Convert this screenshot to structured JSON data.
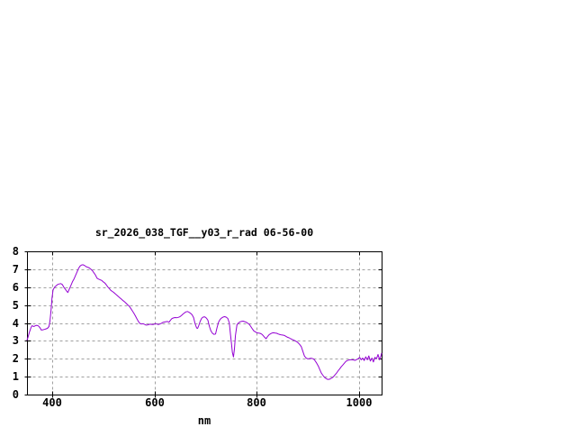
{
  "window": {
    "background": "#ffffff"
  },
  "chart_data": {
    "type": "line",
    "title": "sr_2026_038_TGF__y03_r_rad 06-56-00",
    "xlabel": "nm",
    "ylabel": "",
    "xlim": [
      350,
      1044
    ],
    "ylim": [
      0,
      8
    ],
    "x_ticks": [
      400,
      600,
      800,
      1000
    ],
    "y_ticks": [
      0,
      1,
      2,
      3,
      4,
      5,
      6,
      7,
      8
    ],
    "grid": true,
    "legend_position": "none",
    "axis_color": "#000000",
    "grid_color": "#a0a0a0",
    "series": [
      {
        "name": "spectral_radiance",
        "color": "#9400d3",
        "x": [
          350,
          352,
          355,
          358,
          360,
          363,
          366,
          369,
          372,
          375,
          378,
          381,
          384,
          387,
          390,
          393,
          395,
          397,
          399,
          401,
          404,
          407,
          410,
          413,
          416,
          419,
          422,
          425,
          428,
          430,
          433,
          436,
          439,
          442,
          445,
          448,
          451,
          454,
          457,
          460,
          463,
          466,
          469,
          472,
          475,
          478,
          481,
          484,
          487,
          490,
          493,
          496,
          499,
          502,
          505,
          508,
          511,
          514,
          517,
          520,
          523,
          526,
          529,
          532,
          535,
          538,
          541,
          544,
          547,
          550,
          553,
          556,
          559,
          562,
          565,
          568,
          571,
          574,
          577,
          580,
          583,
          586,
          589,
          592,
          595,
          598,
          601,
          604,
          607,
          610,
          613,
          616,
          619,
          622,
          625,
          628,
          631,
          634,
          637,
          640,
          643,
          646,
          649,
          652,
          655,
          658,
          661,
          664,
          667,
          670,
          673,
          676,
          679,
          682,
          684,
          686,
          689,
          692,
          695,
          698,
          701,
          704,
          707,
          710,
          713,
          716,
          719,
          722,
          725,
          728,
          731,
          734,
          737,
          740,
          743,
          746,
          748,
          750,
          752,
          754,
          756,
          758,
          761,
          764,
          767,
          770,
          773,
          776,
          779,
          782,
          785,
          788,
          791,
          794,
          797,
          800,
          803,
          806,
          809,
          812,
          815,
          818,
          821,
          824,
          827,
          830,
          833,
          836,
          839,
          842,
          845,
          848,
          851,
          854,
          857,
          860,
          863,
          866,
          869,
          872,
          875,
          878,
          881,
          884,
          887,
          890,
          893,
          896,
          899,
          902,
          905,
          908,
          911,
          914,
          917,
          920,
          923,
          926,
          929,
          932,
          935,
          938,
          941,
          944,
          947,
          950,
          953,
          956,
          959,
          962,
          965,
          968,
          971,
          974,
          977,
          980,
          983,
          986,
          989,
          992,
          995,
          998,
          1001,
          1004,
          1007,
          1010,
          1013,
          1016,
          1019,
          1022,
          1025,
          1028,
          1031,
          1034,
          1037,
          1040,
          1042,
          1044
        ],
        "y": [
          3.05,
          3.2,
          3.5,
          3.75,
          3.85,
          3.8,
          3.84,
          3.87,
          3.84,
          3.75,
          3.6,
          3.62,
          3.64,
          3.67,
          3.7,
          3.8,
          4.1,
          4.7,
          5.4,
          5.85,
          6.0,
          6.08,
          6.15,
          6.18,
          6.2,
          6.15,
          6.0,
          5.88,
          5.76,
          5.7,
          5.9,
          6.1,
          6.3,
          6.45,
          6.65,
          6.85,
          7.05,
          7.18,
          7.24,
          7.25,
          7.2,
          7.14,
          7.11,
          7.07,
          7.0,
          6.92,
          6.8,
          6.67,
          6.5,
          6.45,
          6.41,
          6.38,
          6.3,
          6.24,
          6.14,
          6.02,
          5.92,
          5.82,
          5.76,
          5.7,
          5.62,
          5.55,
          5.47,
          5.4,
          5.33,
          5.25,
          5.18,
          5.1,
          5.01,
          4.94,
          4.82,
          4.68,
          4.55,
          4.4,
          4.23,
          4.08,
          3.97,
          3.94,
          3.96,
          3.92,
          3.88,
          3.89,
          3.92,
          3.93,
          3.91,
          3.92,
          3.96,
          3.94,
          3.91,
          3.94,
          3.98,
          4.03,
          4.05,
          4.07,
          4.08,
          4.04,
          4.16,
          4.25,
          4.28,
          4.3,
          4.29,
          4.31,
          4.34,
          4.41,
          4.49,
          4.56,
          4.62,
          4.64,
          4.6,
          4.54,
          4.46,
          4.3,
          3.95,
          3.72,
          3.7,
          3.85,
          4.1,
          4.27,
          4.33,
          4.34,
          4.27,
          4.15,
          3.8,
          3.55,
          3.42,
          3.36,
          3.38,
          3.75,
          4.05,
          4.2,
          4.28,
          4.33,
          4.35,
          4.32,
          4.25,
          4.0,
          3.4,
          2.9,
          2.35,
          2.1,
          2.55,
          3.3,
          3.9,
          4.0,
          4.06,
          4.09,
          4.1,
          4.07,
          4.04,
          3.98,
          3.92,
          3.8,
          3.67,
          3.55,
          3.5,
          3.45,
          3.43,
          3.42,
          3.38,
          3.3,
          3.2,
          3.12,
          3.25,
          3.35,
          3.4,
          3.44,
          3.45,
          3.43,
          3.42,
          3.38,
          3.35,
          3.33,
          3.32,
          3.3,
          3.25,
          3.2,
          3.17,
          3.12,
          3.08,
          3.04,
          3.0,
          2.95,
          2.88,
          2.78,
          2.66,
          2.4,
          2.15,
          2.05,
          2.0,
          2.01,
          2.03,
          2.02,
          1.98,
          1.88,
          1.75,
          1.6,
          1.4,
          1.2,
          1.08,
          0.97,
          0.9,
          0.85,
          0.85,
          0.88,
          0.93,
          1.0,
          1.1,
          1.2,
          1.33,
          1.43,
          1.55,
          1.65,
          1.75,
          1.85,
          1.9,
          1.93,
          1.94,
          1.94,
          1.93,
          1.91,
          1.95,
          2.0,
          2.08,
          1.94,
          2.04,
          1.9,
          2.11,
          1.94,
          2.16,
          1.87,
          2.04,
          1.82,
          2.08,
          2.0,
          2.24,
          1.94,
          2.11,
          2.3
        ]
      }
    ]
  }
}
